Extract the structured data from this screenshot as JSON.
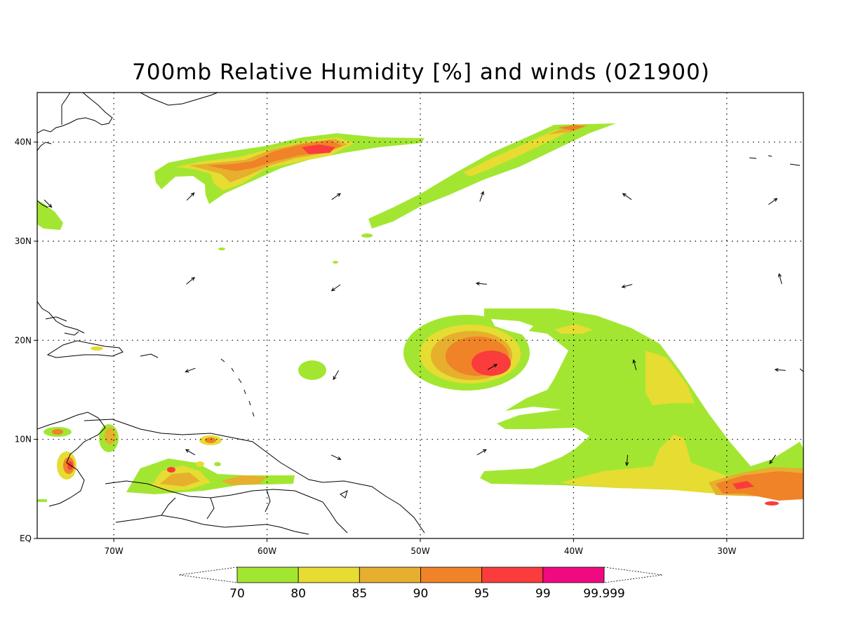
{
  "title": "700mb Relative Humidity [%] and winds (021900)",
  "map": {
    "lon_range": [
      -75,
      -25
    ],
    "lat_range": [
      0,
      45
    ],
    "lon_ticks": [
      {
        "lon": -70,
        "label": "70W"
      },
      {
        "lon": -60,
        "label": "60W"
      },
      {
        "lon": -50,
        "label": "50W"
      },
      {
        "lon": -40,
        "label": "40W"
      },
      {
        "lon": -30,
        "label": "30W"
      }
    ],
    "lat_ticks": [
      {
        "lat": 0,
        "label": "EQ"
      },
      {
        "lat": 10,
        "label": "10N"
      },
      {
        "lat": 20,
        "label": "20N"
      },
      {
        "lat": 30,
        "label": "30N"
      },
      {
        "lat": 40,
        "label": "40N"
      }
    ],
    "grid": "dotted"
  },
  "colorbar": {
    "levels": [
      "70",
      "80",
      "85",
      "90",
      "95",
      "99",
      "99.999"
    ],
    "colors": [
      "#a3e632",
      "#e6dc32",
      "#e6af2d",
      "#f08228",
      "#fa3c3c",
      "#f00a82"
    ]
  },
  "wind_arrows": [
    {
      "lon": -65,
      "lat": 34.5,
      "dir": 45
    },
    {
      "lon": -55.5,
      "lat": 34.5,
      "dir": 55
    },
    {
      "lon": -46,
      "lat": 34.5,
      "dir": 20
    },
    {
      "lon": -36.5,
      "lat": 34.5,
      "dir": 305
    },
    {
      "lon": -27,
      "lat": 34,
      "dir": 55
    },
    {
      "lon": -74.3,
      "lat": 33.8,
      "dir": 135
    },
    {
      "lon": -65,
      "lat": 26,
      "dir": 50
    },
    {
      "lon": -55.5,
      "lat": 25.3,
      "dir": 235
    },
    {
      "lon": -46,
      "lat": 25.7,
      "dir": 275
    },
    {
      "lon": -36.5,
      "lat": 25.5,
      "dir": 255
    },
    {
      "lon": -26.5,
      "lat": 26.2,
      "dir": 345
    },
    {
      "lon": -65,
      "lat": 17,
      "dir": 250
    },
    {
      "lon": -55.5,
      "lat": 16.5,
      "dir": 210
    },
    {
      "lon": -45.3,
      "lat": 17.3,
      "dir": 60
    },
    {
      "lon": -36,
      "lat": 17.5,
      "dir": 345
    },
    {
      "lon": -26.5,
      "lat": 17,
      "dir": 275
    },
    {
      "lon": -65,
      "lat": 8.7,
      "dir": 300
    },
    {
      "lon": -55.5,
      "lat": 8.2,
      "dir": 115
    },
    {
      "lon": -46,
      "lat": 8.7,
      "dir": 60
    },
    {
      "lon": -36.5,
      "lat": 7.9,
      "dir": 185
    },
    {
      "lon": -27,
      "lat": 8,
      "dir": 215
    }
  ]
}
